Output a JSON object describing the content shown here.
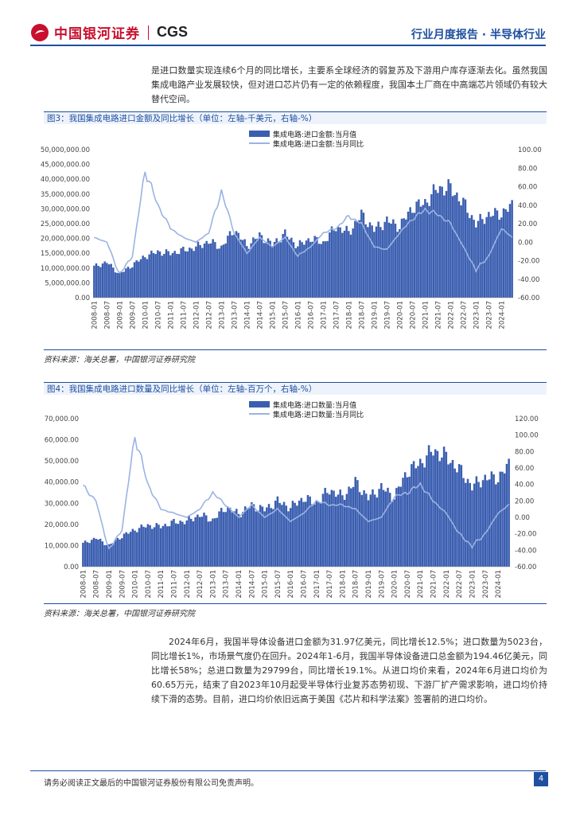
{
  "header": {
    "brand_cn": "中国银河证券",
    "brand_en": "CGS",
    "report_type": "行业月度报告 · 半导体行业",
    "accent": "#1e4fa0",
    "brand_color": "#c8102e"
  },
  "intro_paragraph": "是进口数量实现连续6个月的同比增长，主要系全球经济的弱复苏及下游用户库存逐渐去化。虽然我国集成电路产业发展较快，但对进口芯片仍有一定的依赖程度，我国本土厂商在中高端芯片领域仍有较大替代空间。",
  "figure3": {
    "title": "图3：我国集成电路进口金额及同比增长（单位：左轴-千美元，右轴-%）",
    "source": "资料来源：海关总署，中国银河证券研究院"
  },
  "figure4": {
    "title": "图4：我国集成电路进口数量及同比增长（单位：左轴-百万个，右轴-%）",
    "source": "资料来源：海关总署，中国银河证券研究院"
  },
  "body_paragraph": "2024年6月，我国半导体设备进口金额为31.97亿美元，同比增长12.5%；进口数量为5023台，同比增长1%，市场景气度仍在回升。2024年1-6月，我国半导体设备进口总金额为194.46亿美元，同比增长58%；总进口数量为29799台，同比增长19.1%。从进口均价来看，2024年6月进口均价为60.65万元，结束了自2023年10月起受半导体行业复苏态势初现、下游厂扩产需求影响，进口均价持续下滑的态势。目前，进口均价依旧远高于美国《芯片和科学法案》签署前的进口均价。",
  "footer": {
    "disclaimer": "请务必阅读正文最后的中国银河证券股份有限公司免责声明。",
    "page": "4"
  },
  "chart_data": [
    {
      "type": "bar+line",
      "title": "我国集成电路进口金额及同比增长",
      "series": [
        {
          "name": "集成电路:进口金额:当月值",
          "axis": "left",
          "kind": "bar",
          "color": "#3b5eb0",
          "anchors_x": [
            "2008-01",
            "2008-07",
            "2009-01",
            "2009-07",
            "2010-01",
            "2010-07",
            "2011-01",
            "2011-07",
            "2012-01",
            "2012-07",
            "2013-01",
            "2013-07",
            "2014-01",
            "2014-07",
            "2015-01",
            "2015-07",
            "2016-01",
            "2016-07",
            "2017-01",
            "2017-07",
            "2018-01",
            "2018-07",
            "2019-01",
            "2019-07",
            "2020-01",
            "2020-07",
            "2021-01",
            "2021-07",
            "2022-01",
            "2022-07",
            "2023-01",
            "2023-07",
            "2024-01",
            "2024-06"
          ],
          "anchors_y": [
            10500000,
            12000000,
            8000000,
            11000000,
            14000000,
            15500000,
            15000000,
            16000000,
            17000000,
            19000000,
            17000000,
            23000000,
            17500000,
            21000000,
            18000000,
            21500000,
            17500000,
            20000000,
            18500000,
            24000000,
            22000000,
            28000000,
            23000000,
            26000000,
            24000000,
            30500000,
            32000000,
            37000000,
            37000000,
            32000000,
            25000000,
            28000000,
            28500000,
            31000000
          ]
        },
        {
          "name": "集成电路:进口金额:当月同比",
          "axis": "right",
          "kind": "line",
          "color": "#9bb3e3",
          "anchors_x": [
            "2008-01",
            "2008-07",
            "2009-01",
            "2009-07",
            "2010-01",
            "2010-07",
            "2011-01",
            "2011-07",
            "2012-01",
            "2012-07",
            "2013-01",
            "2013-07",
            "2014-01",
            "2014-07",
            "2015-01",
            "2015-07",
            "2016-01",
            "2016-07",
            "2017-01",
            "2017-07",
            "2018-01",
            "2018-07",
            "2019-01",
            "2019-07",
            "2020-01",
            "2020-07",
            "2021-01",
            "2021-07",
            "2022-01",
            "2022-07",
            "2023-01",
            "2023-07",
            "2024-01",
            "2024-06"
          ],
          "anchors_y": [
            5,
            0,
            -35,
            -15,
            78,
            40,
            15,
            5,
            0,
            10,
            55,
            10,
            -12,
            5,
            -5,
            5,
            -15,
            -5,
            10,
            15,
            28,
            20,
            -5,
            -8,
            10,
            25,
            35,
            30,
            20,
            -5,
            -30,
            -15,
            15,
            5
          ]
        }
      ],
      "categories_shown": [
        "2008-01",
        "2008-07",
        "2009-01",
        "2009-07",
        "2010-01",
        "2010-07",
        "2011-01",
        "2011-07",
        "2012-01",
        "2012-07",
        "2013-01",
        "2013-07",
        "2014-01",
        "2014-07",
        "2015-01",
        "2015-07",
        "2016-01",
        "2016-07",
        "2017-01",
        "2017-07",
        "2018-01",
        "2018-07",
        "2019-01",
        "2019-07",
        "2020-01",
        "2020-07",
        "2021-01",
        "2021-07",
        "2022-01",
        "2022-07",
        "2023-01",
        "2023-07",
        "2024-01"
      ],
      "left_ticks": [
        "0.00",
        "5,000,000.00",
        "10,000,000.00",
        "15,000,000.00",
        "20,000,000.00",
        "25,000,000.00",
        "30,000,000.00",
        "35,000,000.00",
        "40,000,000.00",
        "45,000,000.00",
        "50,000,000.00"
      ],
      "right_ticks": [
        "-60.00",
        "-40.00",
        "-20.00",
        "0.00",
        "20.00",
        "40.00",
        "60.00",
        "80.00",
        "100.00"
      ],
      "ylim_left": [
        0,
        50000000
      ],
      "ylim_right": [
        -60,
        100
      ]
    },
    {
      "type": "bar+line",
      "title": "我国集成电路进口数量及同比增长",
      "series": [
        {
          "name": "集成电路:进口数量:当月值",
          "axis": "left",
          "kind": "bar",
          "color": "#3b5eb0",
          "anchors_x": [
            "2008-01",
            "2008-07",
            "2009-01",
            "2009-07",
            "2010-01",
            "2010-07",
            "2011-01",
            "2011-07",
            "2012-01",
            "2012-07",
            "2013-01",
            "2013-07",
            "2014-01",
            "2014-07",
            "2015-01",
            "2015-07",
            "2016-01",
            "2016-07",
            "2017-01",
            "2017-07",
            "2018-01",
            "2018-07",
            "2019-01",
            "2019-07",
            "2020-01",
            "2020-07",
            "2021-01",
            "2021-07",
            "2022-01",
            "2022-07",
            "2023-01",
            "2023-07",
            "2024-01",
            "2024-06"
          ],
          "anchors_y": [
            11000,
            13500,
            10000,
            14500,
            17500,
            19500,
            19000,
            21000,
            21500,
            24500,
            22000,
            28000,
            25000,
            29000,
            27000,
            31000,
            28000,
            32500,
            30000,
            36500,
            33000,
            40000,
            32500,
            37500,
            33000,
            45000,
            49000,
            55000,
            52000,
            46000,
            38000,
            42000,
            42000,
            48000
          ]
        },
        {
          "name": "集成电路:进口数量:当月同比",
          "axis": "right",
          "kind": "line",
          "color": "#9bb3e3",
          "anchors_x": [
            "2008-01",
            "2008-07",
            "2009-01",
            "2009-07",
            "2010-01",
            "2010-07",
            "2011-01",
            "2011-07",
            "2012-01",
            "2012-07",
            "2013-01",
            "2013-07",
            "2014-01",
            "2014-07",
            "2015-01",
            "2015-07",
            "2016-01",
            "2016-07",
            "2017-01",
            "2017-07",
            "2018-01",
            "2018-07",
            "2019-01",
            "2019-07",
            "2020-01",
            "2020-07",
            "2021-01",
            "2021-07",
            "2022-01",
            "2022-07",
            "2023-01",
            "2023-07",
            "2024-01",
            "2024-06"
          ],
          "anchors_y": [
            38,
            20,
            -40,
            -15,
            100,
            40,
            10,
            5,
            0,
            10,
            30,
            15,
            0,
            15,
            0,
            10,
            -5,
            5,
            20,
            15,
            15,
            10,
            -5,
            0,
            25,
            30,
            40,
            20,
            5,
            -20,
            -35,
            -20,
            5,
            15
          ]
        }
      ],
      "categories_shown": [
        "2008-01",
        "2008-07",
        "2009-01",
        "2009-07",
        "2010-01",
        "2010-07",
        "2011-01",
        "2011-07",
        "2012-01",
        "2012-07",
        "2013-01",
        "2013-07",
        "2014-01",
        "2014-07",
        "2015-01",
        "2015-07",
        "2016-01",
        "2016-07",
        "2017-01",
        "2017-07",
        "2018-01",
        "2018-07",
        "2019-01",
        "2019-07",
        "2020-01",
        "2020-07",
        "2021-01",
        "2021-07",
        "2022-01",
        "2022-07",
        "2023-01",
        "2023-07",
        "2024-01"
      ],
      "left_ticks": [
        "0.00",
        "10,000.00",
        "20,000.00",
        "30,000.00",
        "40,000.00",
        "50,000.00",
        "60,000.00",
        "70,000.00"
      ],
      "right_ticks": [
        "-60.00",
        "-40.00",
        "-20.00",
        "0.00",
        "20.00",
        "40.00",
        "60.00",
        "80.00",
        "100.00",
        "120.00"
      ],
      "ylim_left": [
        0,
        70000
      ],
      "ylim_right": [
        -60,
        120
      ]
    }
  ]
}
